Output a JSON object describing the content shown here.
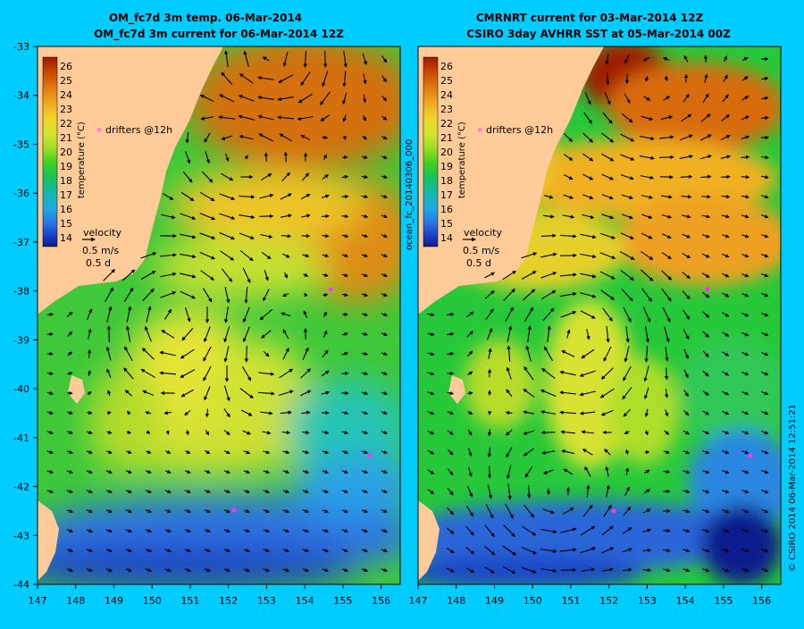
{
  "background_color": "#00ccff",
  "land_color": "#ffcc99",
  "drifter_color": "#ff33ff",
  "arrow_color": "#000000",
  "colorbar": {
    "ticks": [
      "26",
      "25",
      "24",
      "23",
      "22",
      "21",
      "20",
      "19",
      "18",
      "17",
      "16",
      "15",
      "14"
    ],
    "label": "temperature (°C)",
    "colors": [
      "#a01800",
      "#c44a00",
      "#e07a10",
      "#f0a820",
      "#f2d22a",
      "#d6e432",
      "#9ade22",
      "#3ed026",
      "#14c060",
      "#16b8b0",
      "#1ea8e6",
      "#2a72e0",
      "#1a40c8",
      "#0a1a8c"
    ]
  },
  "left_panel": {
    "title_line1": "OM_fc7d 3m temp. 06-Mar-2014",
    "title_line2": "OM_fc7d 3m current for 06-Mar-2014 12Z",
    "drifters_label": "drifters @12h",
    "velocity_label": "velocity",
    "velocity_scale": "0.5 m/s",
    "velocity_time": "0.5 d"
  },
  "right_panel": {
    "title_line1": "CMRNRT current for 03-Mar-2014 12Z",
    "title_line2": "CSIRO 3day AVHRR SST at 05-Mar-2014 00Z",
    "drifters_label": "drifters @12h",
    "velocity_label": "velocity",
    "velocity_scale": "0.5 m/s",
    "velocity_time": "0.5 d"
  },
  "y_ticks": [
    "-33",
    "-34",
    "-35",
    "-36",
    "-37",
    "-38",
    "-39",
    "-40",
    "-41",
    "-42",
    "-43",
    "-44"
  ],
  "x_ticks": [
    "147",
    "148",
    "149",
    "150",
    "151",
    "152",
    "153",
    "154",
    "155",
    "156"
  ],
  "side_label_middle": "ocean_fc_20140306_000",
  "side_label_right": "© CSIRO 2014   06-Mar-2014 12:51:21"
}
